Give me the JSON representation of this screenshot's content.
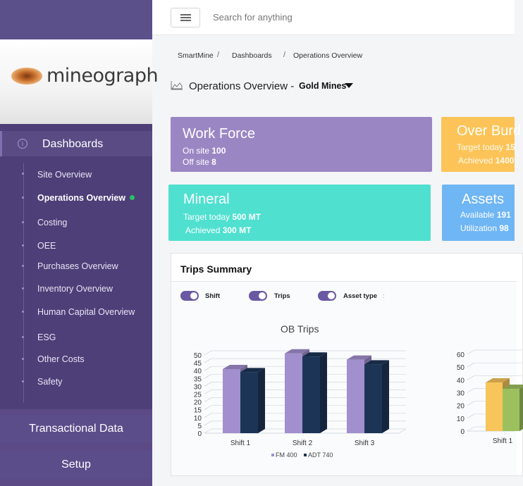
{
  "logo": {
    "text": "mineograph"
  },
  "sidebar": {
    "dashboards_label": "Dashboards",
    "items": [
      {
        "label": "Site Overview",
        "active": false
      },
      {
        "label": "Operations Overview",
        "active": true
      },
      {
        "label": "Costing",
        "active": false
      },
      {
        "label": "OEE",
        "active": false
      },
      {
        "label": "Purchases Overview",
        "active": false
      },
      {
        "label": "Inventory Overview",
        "active": false
      },
      {
        "label": "Human Capital Overview",
        "active": false
      },
      {
        "label": "ESG",
        "active": false
      },
      {
        "label": "Other Costs",
        "active": false
      },
      {
        "label": "Safety",
        "active": false
      }
    ],
    "transactional_label": "Transactional Data",
    "setup_label": "Setup"
  },
  "topbar": {
    "search_placeholder": "Search for anything"
  },
  "breadcrumb": {
    "items": [
      "SmartMine",
      "Dashboards",
      "Operations Overview"
    ]
  },
  "page": {
    "title": "Operations Overview -",
    "selector": "Gold Mines"
  },
  "cards": {
    "workforce": {
      "title": "Work Force",
      "l1": "On site",
      "v1": "100",
      "l2": "Off site",
      "v2": "8",
      "color": "#9b86c4"
    },
    "overburden": {
      "title": "Over Burd",
      "l1": "Target today",
      "v1": "15",
      "l2": "Achieved",
      "v2": "1400",
      "color": "#fcc458"
    },
    "mineral": {
      "title": "Mineral",
      "l1": "Target today",
      "v1": "500 MT",
      "l2": "Achieved",
      "v2": "300 MT",
      "color": "#4fe0d0"
    },
    "assets": {
      "title": "Assets",
      "l1": "Available",
      "v1": "191",
      "l2": "Utilization",
      "v2": "98",
      "color": "#6fb6f4"
    }
  },
  "trips": {
    "title": "Trips Summary",
    "toggles": [
      "Shift",
      "Trips",
      "Asset type"
    ],
    "toggles_more": ":"
  },
  "chart_data": [
    {
      "type": "bar",
      "title": "OB Trips",
      "categories": [
        "Shift 1",
        "Shift 2",
        "Shift 3"
      ],
      "series": [
        {
          "name": "FM 400",
          "values": [
            41,
            51,
            47
          ],
          "color": "#a28fce"
        },
        {
          "name": "ADT 740",
          "values": [
            39,
            49,
            44
          ],
          "color": "#1c3557"
        }
      ],
      "yticks": [
        "0",
        "5",
        "10",
        "15",
        "20",
        "25",
        "30",
        "35",
        "40",
        "45",
        "50"
      ],
      "ylim": [
        0,
        50
      ]
    },
    {
      "type": "bar",
      "title": "",
      "categories": [
        "Shift 1"
      ],
      "series": [
        {
          "name": "",
          "values": [
            38
          ],
          "color": "#f7c55a"
        },
        {
          "name": "",
          "values": [
            33
          ],
          "color": "#9dc05e"
        }
      ],
      "yticks": [
        "0",
        "10",
        "20",
        "30",
        "40",
        "50",
        "60"
      ],
      "ylim": [
        0,
        60
      ]
    }
  ]
}
